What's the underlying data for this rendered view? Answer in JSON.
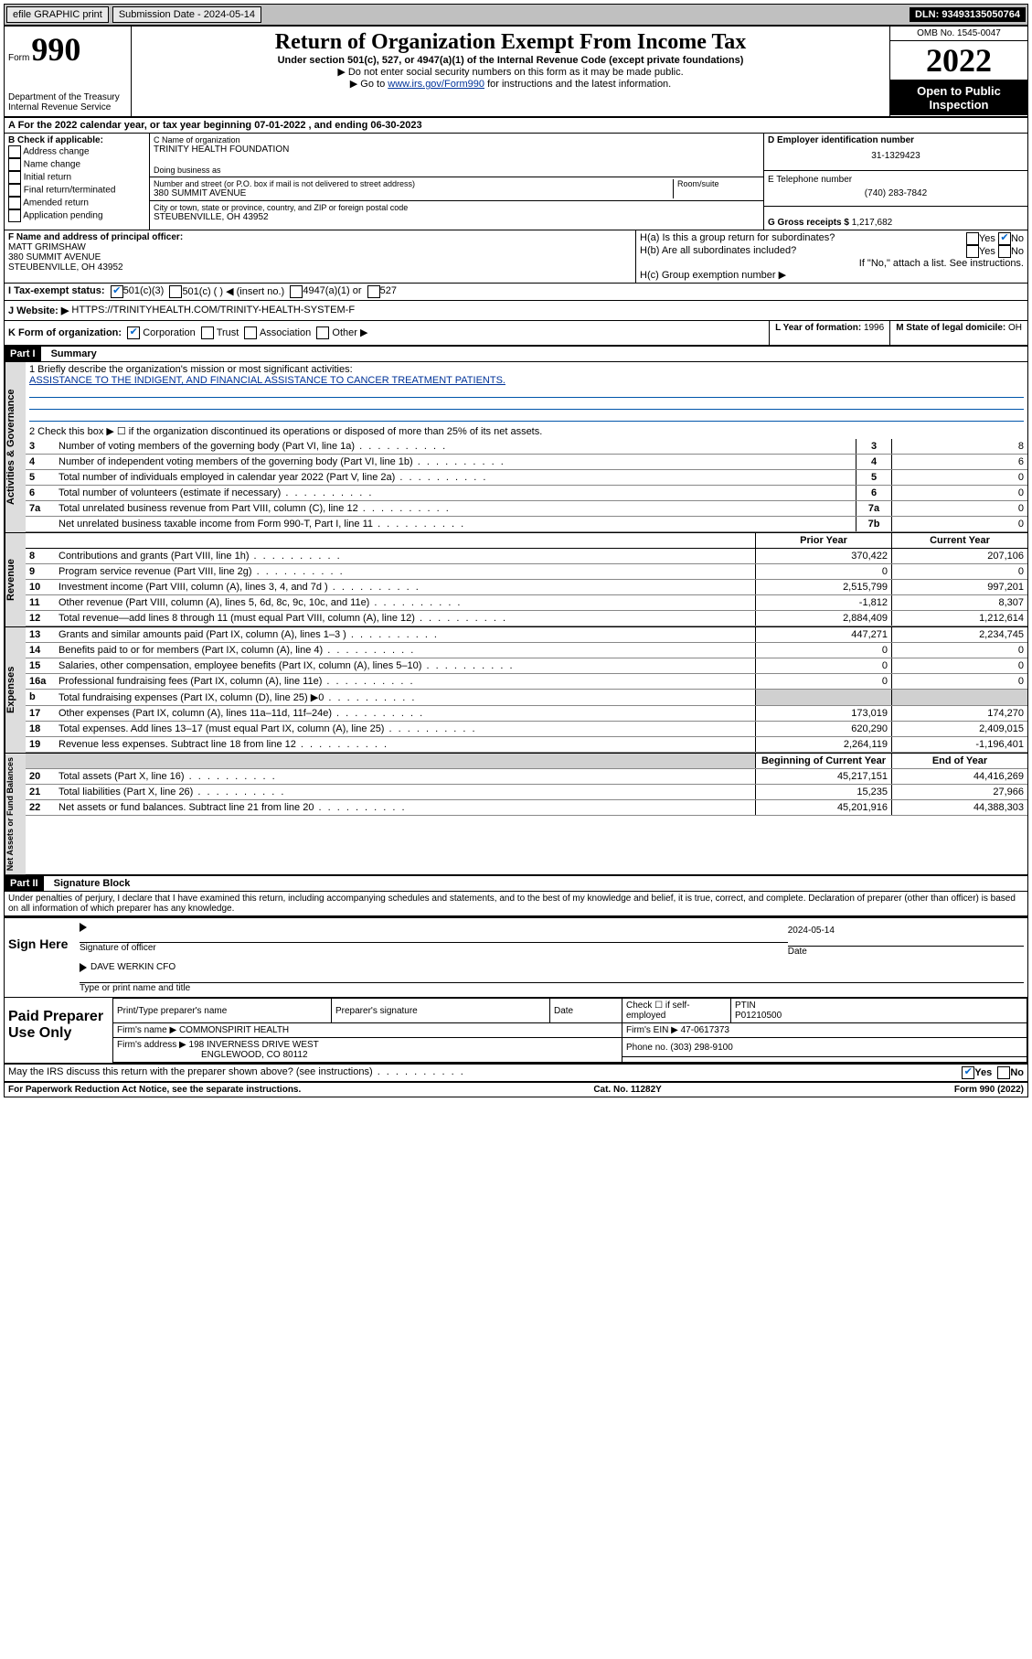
{
  "topbar": {
    "efile": "efile GRAPHIC print",
    "submission": "Submission Date - 2024-05-14",
    "dln": "DLN: 93493135050764"
  },
  "header": {
    "form_label": "Form",
    "form_num": "990",
    "dept": "Department of the Treasury",
    "irs": "Internal Revenue Service",
    "title": "Return of Organization Exempt From Income Tax",
    "sub": "Under section 501(c), 527, or 4947(a)(1) of the Internal Revenue Code (except private foundations)",
    "note1": "▶ Do not enter social security numbers on this form as it may be made public.",
    "note2_pre": "▶ Go to ",
    "note2_link": "www.irs.gov/Form990",
    "note2_post": " for instructions and the latest information.",
    "omb": "OMB No. 1545-0047",
    "year": "2022",
    "open": "Open to Public Inspection"
  },
  "rowA": "A For the 2022 calendar year, or tax year beginning 07-01-2022    , and ending 06-30-2023",
  "B": {
    "title": "B Check if applicable:",
    "items": [
      "Address change",
      "Name change",
      "Initial return",
      "Final return/terminated",
      "Amended return",
      "Application pending"
    ]
  },
  "C": {
    "name_lbl": "C Name of organization",
    "name": "TRINITY HEALTH FOUNDATION",
    "dba": "Doing business as",
    "addr_lbl": "Number and street (or P.O. box if mail is not delivered to street address)",
    "room_lbl": "Room/suite",
    "addr": "380 SUMMIT AVENUE",
    "city_lbl": "City or town, state or province, country, and ZIP or foreign postal code",
    "city": "STEUBENVILLE, OH  43952"
  },
  "D": {
    "ein_lbl": "D Employer identification number",
    "ein": "31-1329423",
    "tel_lbl": "E Telephone number",
    "tel": "(740) 283-7842",
    "gross_lbl": "G Gross receipts $",
    "gross": "1,217,682"
  },
  "F": {
    "lbl": "F  Name and address of principal officer:",
    "name": "MATT GRIMSHAW",
    "addr1": "380 SUMMIT AVENUE",
    "addr2": "STEUBENVILLE, OH  43952"
  },
  "H": {
    "a": "H(a)  Is this a group return for subordinates?",
    "b": "H(b)  Are all subordinates included?",
    "bnote": "If \"No,\" attach a list. See instructions.",
    "c": "H(c)  Group exemption number ▶"
  },
  "I": {
    "lbl": "I    Tax-exempt status:",
    "opts": [
      "501(c)(3)",
      "501(c) (  ) ◀ (insert no.)",
      "4947(a)(1) or",
      "527"
    ]
  },
  "J": {
    "lbl": "J    Website: ▶",
    "val": "HTTPS://TRINITYHEALTH.COM/TRINITY-HEALTH-SYSTEM-F"
  },
  "K": {
    "lbl": "K Form of organization:",
    "opts": [
      "Corporation",
      "Trust",
      "Association",
      "Other ▶"
    ]
  },
  "L": {
    "lbl": "L Year of formation:",
    "val": "1996"
  },
  "M": {
    "lbl": "M State of legal domicile:",
    "val": "OH"
  },
  "part1": {
    "bar": "Part I",
    "title": "Summary",
    "q1_lbl": "1   Briefly describe the organization's mission or most significant activities:",
    "q1_val": "ASSISTANCE TO THE INDIGENT, AND FINANCIAL ASSISTANCE TO CANCER TREATMENT PATIENTS.",
    "q2": "2   Check this box ▶ ☐  if the organization discontinued its operations or disposed of more than 25% of its net assets.",
    "rows_ag": [
      {
        "n": "3",
        "t": "Number of voting members of the governing body (Part VI, line 1a)",
        "b": "3",
        "v": "8"
      },
      {
        "n": "4",
        "t": "Number of independent voting members of the governing body (Part VI, line 1b)",
        "b": "4",
        "v": "6"
      },
      {
        "n": "5",
        "t": "Total number of individuals employed in calendar year 2022 (Part V, line 2a)",
        "b": "5",
        "v": "0"
      },
      {
        "n": "6",
        "t": "Total number of volunteers (estimate if necessary)",
        "b": "6",
        "v": "0"
      },
      {
        "n": "7a",
        "t": "Total unrelated business revenue from Part VIII, column (C), line 12",
        "b": "7a",
        "v": "0"
      },
      {
        "n": "",
        "t": "Net unrelated business taxable income from Form 990-T, Part I, line 11",
        "b": "7b",
        "v": "0"
      }
    ],
    "col_h1": "Prior Year",
    "col_h2": "Current Year",
    "rev": [
      {
        "n": "8",
        "t": "Contributions and grants (Part VIII, line 1h)",
        "p": "370,422",
        "c": "207,106"
      },
      {
        "n": "9",
        "t": "Program service revenue (Part VIII, line 2g)",
        "p": "0",
        "c": "0"
      },
      {
        "n": "10",
        "t": "Investment income (Part VIII, column (A), lines 3, 4, and 7d )",
        "p": "2,515,799",
        "c": "997,201"
      },
      {
        "n": "11",
        "t": "Other revenue (Part VIII, column (A), lines 5, 6d, 8c, 9c, 10c, and 11e)",
        "p": "-1,812",
        "c": "8,307"
      },
      {
        "n": "12",
        "t": "Total revenue—add lines 8 through 11 (must equal Part VIII, column (A), line 12)",
        "p": "2,884,409",
        "c": "1,212,614"
      }
    ],
    "exp": [
      {
        "n": "13",
        "t": "Grants and similar amounts paid (Part IX, column (A), lines 1–3 )",
        "p": "447,271",
        "c": "2,234,745"
      },
      {
        "n": "14",
        "t": "Benefits paid to or for members (Part IX, column (A), line 4)",
        "p": "0",
        "c": "0"
      },
      {
        "n": "15",
        "t": "Salaries, other compensation, employee benefits (Part IX, column (A), lines 5–10)",
        "p": "0",
        "c": "0"
      },
      {
        "n": "16a",
        "t": "Professional fundraising fees (Part IX, column (A), line 11e)",
        "p": "0",
        "c": "0"
      },
      {
        "n": "b",
        "t": "Total fundraising expenses (Part IX, column (D), line 25) ▶0",
        "p": "",
        "c": "",
        "shade": true
      },
      {
        "n": "17",
        "t": "Other expenses (Part IX, column (A), lines 11a–11d, 11f–24e)",
        "p": "173,019",
        "c": "174,270"
      },
      {
        "n": "18",
        "t": "Total expenses. Add lines 13–17 (must equal Part IX, column (A), line 25)",
        "p": "620,290",
        "c": "2,409,015"
      },
      {
        "n": "19",
        "t": "Revenue less expenses. Subtract line 18 from line 12",
        "p": "2,264,119",
        "c": "-1,196,401"
      }
    ],
    "na_h1": "Beginning of Current Year",
    "na_h2": "End of Year",
    "na": [
      {
        "n": "20",
        "t": "Total assets (Part X, line 16)",
        "p": "45,217,151",
        "c": "44,416,269"
      },
      {
        "n": "21",
        "t": "Total liabilities (Part X, line 26)",
        "p": "15,235",
        "c": "27,966"
      },
      {
        "n": "22",
        "t": "Net assets or fund balances. Subtract line 21 from line 20",
        "p": "45,201,916",
        "c": "44,388,303"
      }
    ],
    "side_ag": "Activities & Governance",
    "side_rev": "Revenue",
    "side_exp": "Expenses",
    "side_na": "Net Assets or Fund Balances"
  },
  "part2": {
    "bar": "Part II",
    "title": "Signature Block",
    "penalty": "Under penalties of perjury, I declare that I have examined this return, including accompanying schedules and statements, and to the best of my knowledge and belief, it is true, correct, and complete. Declaration of preparer (other than officer) is based on all information of which preparer has any knowledge."
  },
  "sign": {
    "lbl": "Sign Here",
    "sig_of": "Signature of officer",
    "date_lbl": "Date",
    "date": "2024-05-14",
    "name": "DAVE WERKIN  CFO",
    "name_lbl": "Type or print name and title"
  },
  "paid": {
    "lbl": "Paid Preparer Use Only",
    "h1": "Print/Type preparer's name",
    "h2": "Preparer's signature",
    "h3": "Date",
    "h4_chk": "Check ☐ if self-employed",
    "h5": "PTIN",
    "ptin": "P01210500",
    "firm_lbl": "Firm's name    ▶",
    "firm": "COMMONSPIRIT HEALTH",
    "ein_lbl": "Firm's EIN ▶",
    "ein": "47-0617373",
    "addr_lbl": "Firm's address ▶",
    "addr1": "198 INVERNESS DRIVE WEST",
    "addr2": "ENGLEWOOD, CO  80112",
    "phone_lbl": "Phone no.",
    "phone": "(303) 298-9100"
  },
  "footer": {
    "discuss": "May the IRS discuss this return with the preparer shown above? (see instructions)",
    "pra": "For Paperwork Reduction Act Notice, see the separate instructions.",
    "cat": "Cat. No. 11282Y",
    "form": "Form 990 (2022)"
  },
  "yes": "Yes",
  "no": "No"
}
